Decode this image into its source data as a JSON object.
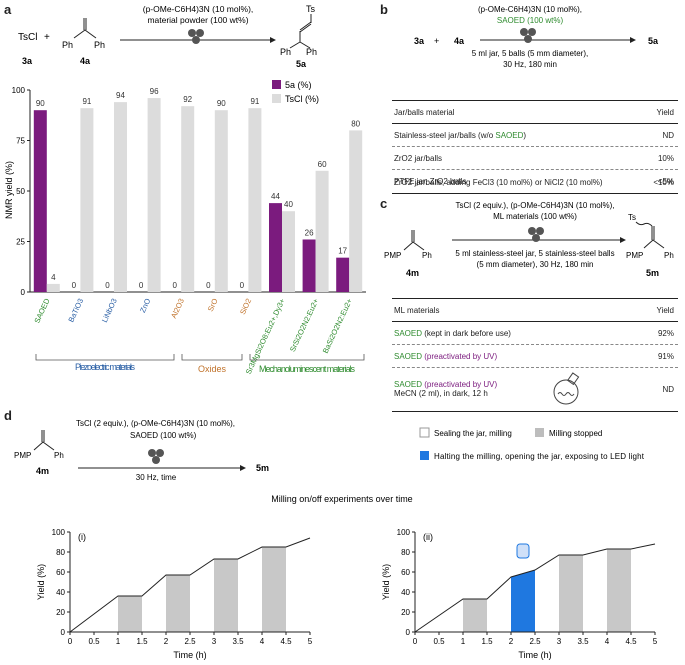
{
  "colors": {
    "purple": "#7b1b7e",
    "gray": "#dcdcdc",
    "green": "#2e8b2e",
    "blue": "#1a6fd4",
    "orange": "#c0722a",
    "navy": "#2a5fa5",
    "led": "#1f78e0"
  },
  "panel_a": {
    "label": "a",
    "reaction": {
      "reagent1": "TsCl",
      "plus": "+",
      "reagent1_id": "3a",
      "reagent2_id": "4a",
      "product_id": "5a",
      "cond1": "(p-OMe-C6H4)3N (10 mol%),",
      "cond2": "material powder (100 wt%)",
      "ts": "Ts",
      "ph": "Ph"
    },
    "legend": {
      "s1": "5a (%)",
      "s2": "TsCl (%)"
    },
    "groups": [
      "Piezoelectric materials",
      "Oxides",
      "Mechanoluminescent materials"
    ]
  },
  "panel_b": {
    "label": "b",
    "cond1": "(p-OMe-C6H4)3N (10 mol%),",
    "cond2": "SAOED (100 wt%)",
    "cond3": "5 ml jar, 5 balls (5 mm diameter),",
    "cond4": "30 Hz, 180 min",
    "r1": "3a",
    "plus": "+",
    "r2": "4a",
    "product": "5a",
    "header": {
      "material": "Jar/balls material",
      "yield": "Yield"
    },
    "rows": [
      {
        "pre": "Stainless-steel jar/balls (w/o ",
        "hl": "SAOED",
        "post": ")",
        "yield": "ND"
      },
      {
        "pre": "ZrO2 jar/balls",
        "hl": "",
        "post": "",
        "yield": "10%"
      },
      {
        "pre": "PTFE jar, ZrO2 balls",
        "hl": "",
        "post": "",
        "yield": "<5%"
      },
      {
        "pre": "ZrO2 jar/balls, adding FeCl3 (10 mol%) or NiCl2 (10 mol%)",
        "hl": "",
        "post": "",
        "yield": "<10%"
      }
    ]
  },
  "panel_c": {
    "label": "c",
    "cond1": "TsCl (2 equiv.), (p-OMe-C6H4)3N (10 mol%),",
    "cond2": "ML materials (100 wt%)",
    "cond3": "5 ml stainless-steel jar, 5 stainless-steel balls",
    "cond4": "(5 mm diameter), 30 Hz, 180 min",
    "reactant": "4m",
    "product": "5m",
    "pmp": "PMP",
    "ph": "Ph",
    "ts": "Ts",
    "header": {
      "material": "ML materials",
      "yield": "Yield"
    },
    "rows": [
      {
        "name": "SAOED",
        "note": " (kept in dark before use)",
        "note_color": "dark",
        "yield": "92%"
      },
      {
        "name": "SAOED",
        "note": " (preactivated by UV)",
        "note_color": "purple",
        "yield": "91%"
      },
      {
        "name": "SAOED",
        "note": " (preactivated by UV)",
        "note_color": "purple",
        "line2": "MeCN (2 ml), in dark, 12 h",
        "yield": "ND"
      }
    ]
  },
  "panel_d": {
    "label": "d",
    "cond1": "TsCl (2 equiv.), (p-OMe-C6H4)3N (10 mol%),",
    "cond2": "SAOED (100 wt%)",
    "cond3": "30 Hz, time",
    "reactant": "4m",
    "product": "5m",
    "pmp": "PMP",
    "ph": "Ph",
    "legend": {
      "l1": "Sealing the jar, milling",
      "l2": "Milling stopped",
      "l3": "Halting the milling, opening the jar, exposing to LED light"
    },
    "title": "Milling on/off experiments over time",
    "sub1": "(i)",
    "sub2": "(ii)"
  },
  "chart_data": [
    {
      "type": "bar",
      "categories": [
        "SAOED",
        "BaTiO3",
        "LiNbO3",
        "ZnO",
        "Al2O3",
        "SrO",
        "SiO2",
        "Sr3MgSi2O8:Eu2+,Dy3+",
        "SrSi2O2N2:Eu2+",
        "BaSi2O2N2:Eu2+"
      ],
      "category_colors": [
        "green",
        "navy",
        "navy",
        "navy",
        "orange",
        "orange",
        "orange",
        "green",
        "green",
        "green"
      ],
      "series": [
        {
          "name": "5a (%)",
          "values": [
            90,
            0,
            0,
            0,
            0,
            0,
            0,
            44,
            26,
            17
          ]
        },
        {
          "name": "TsCl (%)",
          "values": [
            4,
            91,
            94,
            96,
            92,
            90,
            91,
            40,
            60,
            80
          ]
        }
      ],
      "ylabel": "NMR yield (%)",
      "ylim": [
        0,
        100
      ],
      "yticks": [
        0,
        25,
        50,
        75,
        100
      ]
    },
    {
      "type": "line",
      "title": "(i)",
      "x": [
        0,
        1,
        1.5,
        2,
        2.5,
        3,
        3.5,
        4,
        4.5,
        5
      ],
      "y": [
        0,
        36,
        36,
        57,
        57,
        73,
        73,
        85,
        85,
        94
      ],
      "stopped_intervals": [
        [
          1,
          1.5
        ],
        [
          2,
          2.5
        ],
        [
          3,
          3.5
        ],
        [
          4,
          4.5
        ]
      ],
      "xlabel": "Time (h)",
      "ylabel": "Yield (%)",
      "xlim": [
        0,
        5
      ],
      "ylim": [
        0,
        100
      ],
      "xticks": [
        0,
        0.5,
        1,
        1.5,
        2,
        2.5,
        3,
        3.5,
        4,
        4.5,
        5
      ],
      "yticks": [
        0,
        20,
        40,
        60,
        80,
        100
      ]
    },
    {
      "type": "line",
      "title": "(ii)",
      "x": [
        0,
        1,
        1.5,
        2,
        2.5,
        3,
        3.5,
        4,
        4.5,
        5
      ],
      "y": [
        0,
        33,
        33,
        55,
        62,
        77,
        77,
        83,
        83,
        88
      ],
      "stopped_intervals": [
        [
          1,
          1.5
        ],
        [
          3,
          3.5
        ],
        [
          4,
          4.5
        ]
      ],
      "led_intervals": [
        [
          2,
          2.5
        ]
      ],
      "xlabel": "Time (h)",
      "ylabel": "Yield (%)",
      "xlim": [
        0,
        5
      ],
      "ylim": [
        0,
        100
      ],
      "xticks": [
        0,
        0.5,
        1,
        1.5,
        2,
        2.5,
        3,
        3.5,
        4,
        4.5,
        5
      ],
      "yticks": [
        0,
        20,
        40,
        60,
        80,
        100
      ]
    }
  ]
}
